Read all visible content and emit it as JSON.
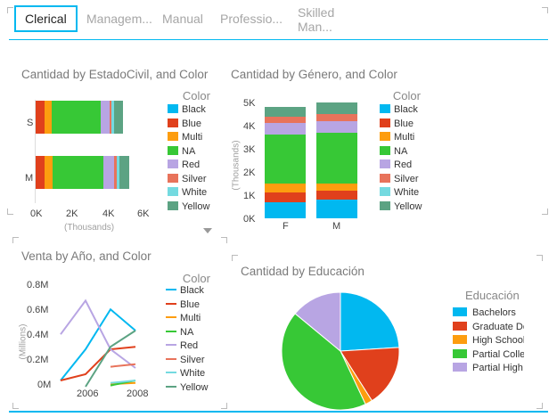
{
  "tabs": [
    {
      "label": "Clerical",
      "selected": true
    },
    {
      "label": "Managem..."
    },
    {
      "label": "Manual"
    },
    {
      "label": "Professio..."
    },
    {
      "label_line1": "Skilled",
      "label_line2": "Man..."
    }
  ],
  "colors": {
    "accent": "#01b8f0",
    "Black": "#01b8f0",
    "Blue": "#e0401c",
    "Multi": "#fd9d0f",
    "NA": "#37c836",
    "Red": "#b8a5e3",
    "Silver": "#e8735b",
    "White": "#74dae0",
    "Yellow": "#5ca383"
  },
  "legend_color": {
    "title": "Color",
    "items": [
      "Black",
      "Blue",
      "Multi",
      "NA",
      "Red",
      "Silver",
      "White",
      "Yellow"
    ]
  },
  "chart_data": [
    {
      "id": "estadocivil",
      "type": "bar",
      "orientation": "horizontal",
      "stacked": true,
      "title": "Cantidad by EstadoCivil, and Color",
      "categories": [
        "S",
        "M"
      ],
      "series": [
        {
          "name": "Black",
          "values": [
            0,
            0
          ]
        },
        {
          "name": "Blue",
          "values": [
            400,
            400
          ]
        },
        {
          "name": "Multi",
          "values": [
            300,
            350
          ]
        },
        {
          "name": "NA",
          "values": [
            2200,
            2300
          ]
        },
        {
          "name": "Red",
          "values": [
            400,
            450
          ]
        },
        {
          "name": "Silver",
          "values": [
            100,
            150
          ]
        },
        {
          "name": "White",
          "values": [
            100,
            100
          ]
        },
        {
          "name": "Yellow",
          "values": [
            400,
            450
          ]
        }
      ],
      "xticks": [
        "0K",
        "2K",
        "4K",
        "6K"
      ],
      "xlim": [
        0,
        6000
      ],
      "xlabel": "(Thousands)"
    },
    {
      "id": "genero",
      "type": "bar",
      "stacked": true,
      "title": "Cantidad by Género, and Color",
      "categories": [
        "F",
        "M"
      ],
      "series": [
        {
          "name": "Black",
          "values": [
            700,
            800
          ]
        },
        {
          "name": "Blue",
          "values": [
            400,
            400
          ]
        },
        {
          "name": "Multi",
          "values": [
            400,
            300
          ]
        },
        {
          "name": "NA",
          "values": [
            2100,
            2200
          ]
        },
        {
          "name": "Red",
          "values": [
            500,
            500
          ]
        },
        {
          "name": "Silver",
          "values": [
            300,
            300
          ]
        },
        {
          "name": "White",
          "values": [
            0,
            0
          ]
        },
        {
          "name": "Yellow",
          "values": [
            400,
            500
          ]
        }
      ],
      "yticks": [
        "0K",
        "1K",
        "2K",
        "3K",
        "4K",
        "5K"
      ],
      "ylim": [
        0,
        5000
      ],
      "ylabel": "(Thousands)"
    },
    {
      "id": "venta",
      "type": "line",
      "title": "Venta by Año, and Color",
      "x": [
        2005,
        2006,
        2007,
        2008,
        2009
      ],
      "xticks": [
        "2006",
        "2008"
      ],
      "yticks": [
        "0M",
        "0.2M",
        "0.4M",
        "0.6M",
        "0.8M"
      ],
      "ylim": [
        0,
        0.8
      ],
      "ylabel": "(Millions)",
      "series": [
        {
          "name": "Black",
          "values": [
            0.05,
            0.3,
            0.62,
            0.45,
            null
          ]
        },
        {
          "name": "Blue",
          "values": [
            0.05,
            0.1,
            0.3,
            0.32,
            null
          ]
        },
        {
          "name": "Multi",
          "values": [
            null,
            null,
            0.02,
            0.03,
            null
          ]
        },
        {
          "name": "NA",
          "values": [
            null,
            null,
            0.01,
            0.05,
            null
          ]
        },
        {
          "name": "Red",
          "values": [
            0.42,
            0.69,
            0.3,
            0.15,
            null
          ]
        },
        {
          "name": "Silver",
          "values": [
            null,
            null,
            0.16,
            0.18,
            null
          ]
        },
        {
          "name": "White",
          "values": [
            null,
            null,
            0.03,
            0.05,
            null
          ]
        },
        {
          "name": "Yellow",
          "values": [
            null,
            0.0,
            0.32,
            0.45,
            null
          ]
        }
      ]
    },
    {
      "id": "educacion",
      "type": "pie",
      "title": "Cantidad by Educación",
      "legend_title": "Educación",
      "slices": [
        {
          "label": "Bachelors",
          "legend_text": "Bachelors",
          "value": 24,
          "color": "#01b8f0"
        },
        {
          "label": "Graduate Degree",
          "legend_text": "Graduate De",
          "value": 17,
          "color": "#e0401c"
        },
        {
          "label": "High School",
          "legend_text": "High School",
          "value": 2,
          "color": "#fd9d0f"
        },
        {
          "label": "Partial College",
          "legend_text": "Partial Colleg",
          "value": 43,
          "color": "#37c836"
        },
        {
          "label": "Partial High School",
          "legend_text": "Partial High S",
          "value": 14,
          "color": "#b8a5e3"
        }
      ]
    }
  ]
}
